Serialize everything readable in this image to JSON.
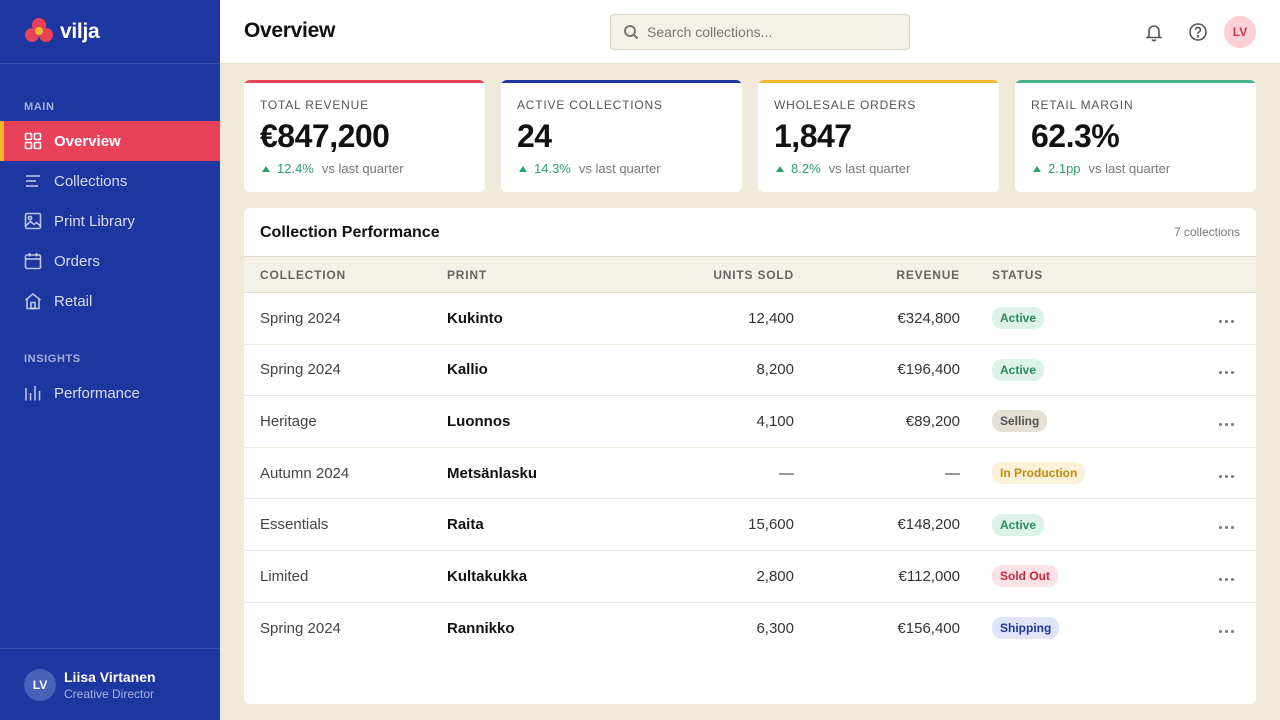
{
  "app": {
    "brand": "vilja"
  },
  "sidebar": {
    "sections": [
      {
        "label": "MAIN"
      },
      {
        "label": "INSIGHTS"
      }
    ],
    "items": [
      {
        "label": "Overview",
        "icon": "grid-icon",
        "active": true
      },
      {
        "label": "Collections",
        "icon": "list-icon"
      },
      {
        "label": "Print Library",
        "icon": "image-icon"
      },
      {
        "label": "Orders",
        "icon": "calendar-icon"
      },
      {
        "label": "Retail",
        "icon": "store-icon"
      },
      {
        "label": "Performance",
        "icon": "bar-chart-icon"
      }
    ],
    "user": {
      "initials": "LV",
      "name": "Liisa Virtanen",
      "role": "Creative Director"
    }
  },
  "header": {
    "title": "Overview",
    "search_placeholder": "Search collections...",
    "avatar_initials": "LV"
  },
  "kpis": [
    {
      "label": "TOTAL REVENUE",
      "value": "€847,200",
      "delta": "12.4%",
      "vs": "vs last quarter"
    },
    {
      "label": "ACTIVE COLLECTIONS",
      "value": "24",
      "delta": "14.3%",
      "vs": "vs last quarter"
    },
    {
      "label": "WHOLESALE ORDERS",
      "value": "1,847",
      "delta": "8.2%",
      "vs": "vs last quarter"
    },
    {
      "label": "RETAIL MARGIN",
      "value": "62.3%",
      "delta": "2.1pp",
      "vs": "vs last quarter"
    }
  ],
  "table": {
    "title": "Collection Performance",
    "count": "7 collections",
    "columns": [
      "COLLECTION",
      "PRINT",
      "UNITS SOLD",
      "REVENUE",
      "STATUS"
    ],
    "rows": [
      {
        "collection": "Spring 2024",
        "print": "Kukinto",
        "units": "12,400",
        "revenue": "€324,800",
        "status": "Active"
      },
      {
        "collection": "Spring 2024",
        "print": "Kallio",
        "units": "8,200",
        "revenue": "€196,400",
        "status": "Active"
      },
      {
        "collection": "Heritage",
        "print": "Luonnos",
        "units": "4,100",
        "revenue": "€89,200",
        "status": "Selling"
      },
      {
        "collection": "Autumn 2024",
        "print": "Metsänlasku",
        "units": "—",
        "revenue": "—",
        "status": "In Production"
      },
      {
        "collection": "Essentials",
        "print": "Raita",
        "units": "15,600",
        "revenue": "€148,200",
        "status": "Active"
      },
      {
        "collection": "Limited",
        "print": "Kultakukka",
        "units": "2,800",
        "revenue": "€112,000",
        "status": "Sold Out"
      },
      {
        "collection": "Spring 2024",
        "print": "Rannikko",
        "units": "6,300",
        "revenue": "€156,400",
        "status": "Shipping"
      }
    ]
  },
  "colors": {
    "sidebar": "#1d36a0",
    "accent": "#e8415a",
    "yellow": "#f0b92d",
    "green": "#4fb58c",
    "background": "#f1ead9"
  }
}
